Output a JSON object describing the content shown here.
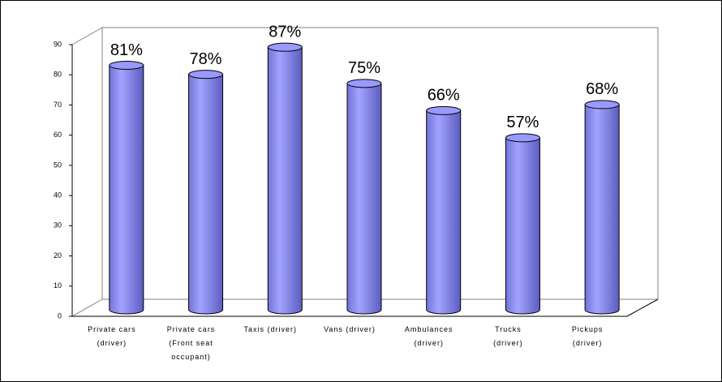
{
  "chart_data": {
    "type": "bar",
    "categories": [
      "Private cars (driver)",
      "Private cars (Front seat occupant)",
      "Taxis (driver)",
      "Vans (driver)",
      "Ambulances (driver)",
      "Trucks (driver)",
      "Pickups (driver)"
    ],
    "values": [
      81,
      78,
      87,
      75,
      66,
      57,
      68
    ],
    "value_labels": [
      "81%",
      "78%",
      "87%",
      "75%",
      "66%",
      "57%",
      "68%"
    ],
    "color": "#9999ff",
    "ylim": [
      0,
      90
    ],
    "yticks": [
      0,
      10,
      20,
      30,
      40,
      50,
      60,
      70,
      80,
      90
    ],
    "grid": false
  }
}
